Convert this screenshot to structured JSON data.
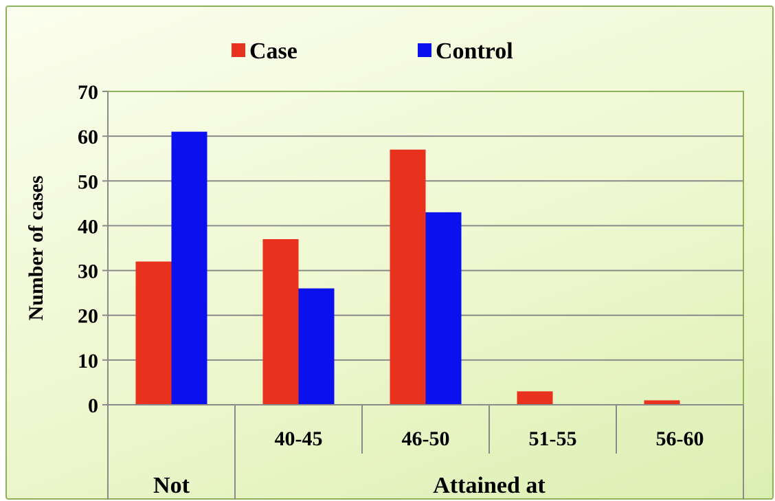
{
  "chart_data": {
    "type": "bar",
    "title": "",
    "ylabel": "Number of cases",
    "xlabel": "",
    "ylim": [
      0,
      70
    ],
    "yticks": [
      0,
      10,
      20,
      30,
      40,
      50,
      60,
      70
    ],
    "grid": true,
    "legend_position": "top",
    "categories": [
      "",
      "40-45",
      "46-50",
      "51-55",
      "56-60"
    ],
    "groups": [
      {
        "label": "Not",
        "span": [
          0,
          0
        ]
      },
      {
        "label": "Attained at",
        "span": [
          1,
          4
        ]
      }
    ],
    "series": [
      {
        "name": "Case",
        "color": "#e8321e",
        "values": [
          32,
          37,
          57,
          3,
          1
        ]
      },
      {
        "name": "Control",
        "color": "#0a10ee",
        "values": [
          61,
          26,
          43,
          0,
          0
        ]
      }
    ]
  }
}
